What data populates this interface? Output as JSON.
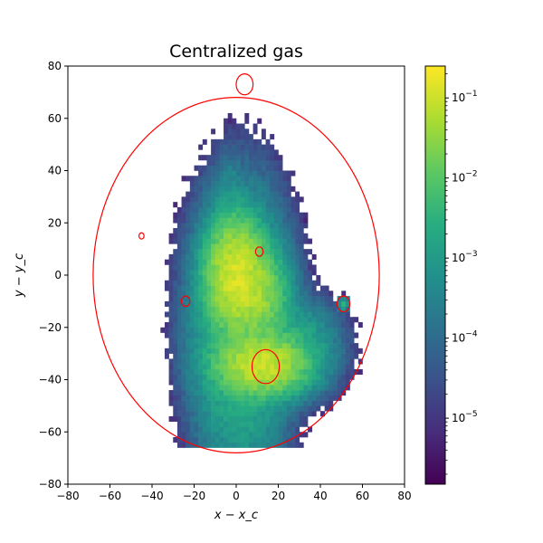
{
  "chart_data": {
    "type": "heatmap",
    "title": "Centralized gas",
    "xlabel": "x − x_c",
    "ylabel": "y − y_c",
    "xlim": [
      -80,
      80
    ],
    "ylim": [
      -80,
      80
    ],
    "xticks": [
      -80,
      -60,
      -40,
      -20,
      0,
      20,
      40,
      60,
      80
    ],
    "yticks": [
      -80,
      -60,
      -40,
      -20,
      0,
      20,
      40,
      60,
      80
    ],
    "grid": false,
    "bin_size": 2,
    "colorbar": {
      "scale": "log",
      "colormap": "viridis",
      "vmin": 1.5e-06,
      "vmax": 0.25,
      "tick_values": [
        1e-05,
        0.0001,
        0.001,
        0.01,
        0.1
      ],
      "tick_labels": [
        {
          "base": "10",
          "exp": "−5"
        },
        {
          "base": "10",
          "exp": "−4"
        },
        {
          "base": "10",
          "exp": "−3"
        },
        {
          "base": "10",
          "exp": "−2"
        },
        {
          "base": "10",
          "exp": "−1"
        }
      ]
    },
    "density_components": [
      {
        "cx": 0,
        "cy": 0,
        "sx": 6,
        "sy": 9,
        "amp": 0.12
      },
      {
        "cx": 10,
        "cy": -8,
        "sx": 6,
        "sy": 8,
        "amp": 0.035
      },
      {
        "cx": 12,
        "cy": -34,
        "sx": 9,
        "sy": 5,
        "amp": 0.1
      },
      {
        "cx": 2,
        "cy": -20,
        "sx": 10,
        "sy": 22,
        "amp": 0.006
      },
      {
        "cx": -3,
        "cy": 22,
        "sx": 3,
        "sy": 10,
        "amp": 0.0008
      },
      {
        "cx": 25,
        "cy": -28,
        "sx": 10,
        "sy": 8,
        "amp": 0.003
      },
      {
        "cx": 51,
        "cy": -11,
        "sx": 1.2,
        "sy": 1.2,
        "amp": 0.0025
      }
    ],
    "circles": [
      {
        "cx": 0,
        "cy": 0,
        "rx": 68,
        "ry": 68,
        "color": "#ff0000"
      },
      {
        "cx": 4,
        "cy": 73,
        "rx": 4,
        "ry": 4,
        "color": "#ff0000"
      },
      {
        "cx": 14,
        "cy": -35,
        "rx": 6.5,
        "ry": 6.5,
        "color": "#ff0000"
      },
      {
        "cx": 51,
        "cy": -11,
        "rx": 3,
        "ry": 3,
        "color": "#ff0000"
      },
      {
        "cx": -24,
        "cy": -10,
        "rx": 2,
        "ry": 2,
        "color": "#ff0000"
      },
      {
        "cx": 11,
        "cy": 9,
        "rx": 1.8,
        "ry": 1.8,
        "color": "#ff0000"
      },
      {
        "cx": -45,
        "cy": 15,
        "rx": 1.2,
        "ry": 1.2,
        "color": "#ff0000"
      }
    ]
  }
}
